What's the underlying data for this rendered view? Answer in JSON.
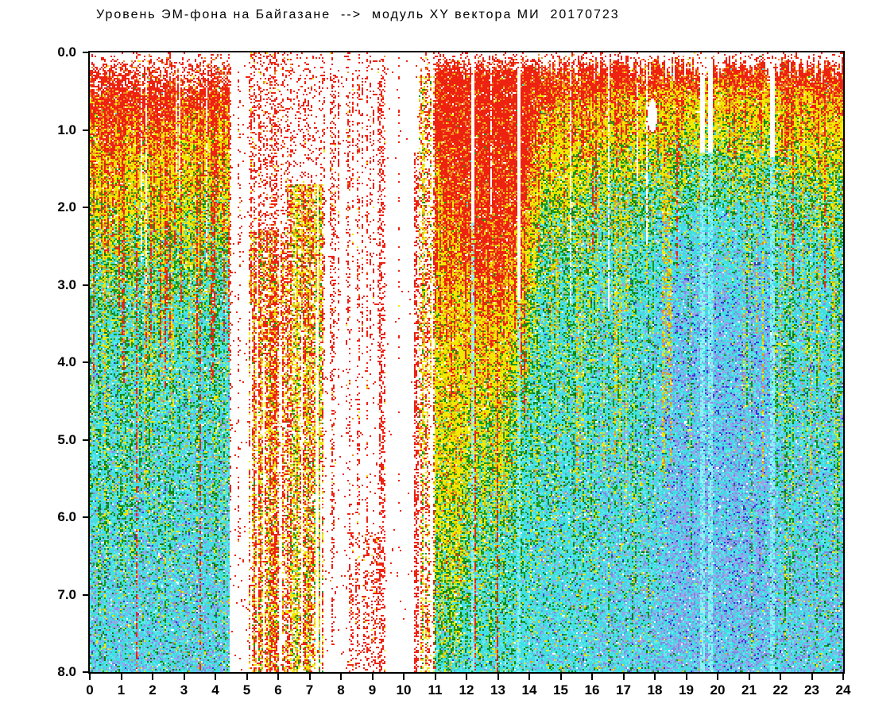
{
  "chart_data": {
    "type": "heatmap",
    "title": "Уровень ЭМ-фона на Байгазане  -->  модуль XY вектора МИ  20170723",
    "station": "Байгазан",
    "date_label": "20170723",
    "x_range": [
      0,
      24
    ],
    "y_range": [
      0,
      8
    ],
    "y_inverted": true,
    "x_ticks": [
      0,
      1,
      2,
      3,
      4,
      5,
      6,
      7,
      8,
      9,
      10,
      11,
      12,
      13,
      14,
      15,
      16,
      17,
      18,
      19,
      20,
      21,
      22,
      23,
      24
    ],
    "y_ticks": [
      "0.0",
      "1.0",
      "2.0",
      "3.0",
      "4.0",
      "5.0",
      "6.0",
      "7.0",
      "8.0"
    ],
    "palette": {
      "red": "#ee2211",
      "orange": "#ef8822",
      "yellow": "#f2e800",
      "gold": "#d2bc00",
      "green": "#1a9c1a",
      "darkgreen": "#0d7a0d",
      "cyan": "#3fdfe4",
      "cyan2": "#66e8ec",
      "cyanLight": "#8ff0f4",
      "lavender": "#9aa2ea",
      "lavender2": "#8088e0",
      "blue": "#3236d8",
      "white": "#ffffff"
    },
    "bands_stops": [
      [
        0.0,
        0.95,
        2.3,
        3.3
      ],
      [
        2.5,
        1.0,
        2.45,
        3.45
      ],
      [
        4.45,
        0.85,
        2.2,
        3.2
      ],
      [
        10.5,
        1.0,
        4.0,
        6.0
      ],
      [
        11.0,
        1.5,
        6.0,
        7.6
      ],
      [
        11.6,
        2.4,
        6.8,
        7.9
      ],
      [
        12.2,
        3.0,
        5.6,
        7.0
      ],
      [
        13.2,
        3.2,
        5.0,
        6.5
      ],
      [
        13.8,
        2.3,
        4.2,
        5.5
      ],
      [
        14.3,
        0.8,
        2.3,
        3.3
      ],
      [
        15.2,
        0.65,
        2.0,
        3.0
      ],
      [
        16.2,
        0.55,
        1.65,
        2.5
      ],
      [
        18.0,
        0.48,
        1.4,
        2.2
      ],
      [
        20.0,
        0.42,
        1.2,
        2.0
      ],
      [
        21.5,
        0.45,
        1.25,
        2.05
      ],
      [
        22.6,
        0.52,
        1.5,
        2.3
      ],
      [
        24.0,
        0.58,
        1.8,
        2.7
      ]
    ],
    "segments": [
      {
        "id": "morning-active",
        "t0": 0.0,
        "t1": 4.45,
        "type": "full",
        "density": 0.985,
        "topJitter": 0.18,
        "topRamp": 0.5,
        "redStreakProb": 0.5,
        "streakDmin": 1.2,
        "streakDmax": 4.8,
        "greenStreakProb": 0.35,
        "yellowStreakProb": 0.22,
        "greenSpeck": 0.16,
        "yellowSpeck": 0.1,
        "lav0": 0.03,
        "lav1": 0.33,
        "blueDot": 0.012,
        "whiteHole": 0.035,
        "whiteColProb": 0.05
      },
      {
        "id": "gap-morning",
        "t0": 4.45,
        "t1": 5.05,
        "type": "gap",
        "colProb": 0.28,
        "colDensity": 0.3,
        "dotProb": 0.015
      },
      {
        "id": "red-streak-band",
        "t0": 5.05,
        "t1": 6.3,
        "type": "streaky",
        "redCol": 0.6,
        "yellowCol": 0.22,
        "topSparse": 2.3,
        "topDensity": 0.42,
        "fill": 0.8
      },
      {
        "id": "yellow-column-band",
        "t0": 6.3,
        "t1": 7.45,
        "type": "streaky",
        "redCol": 0.3,
        "yellowCol": 0.55,
        "topSparse": 1.7,
        "topDensity": 0.3,
        "fill": 0.85
      },
      {
        "id": "gap-forenoon",
        "t0": 7.45,
        "t1": 9.4,
        "type": "gap",
        "colProb": 0.5,
        "colDensity": 0.3,
        "dotProb": 0.02,
        "bottomBoostT": 8.2,
        "bottomBoostD": 6.2
      },
      {
        "id": "gap-midday-blank",
        "t0": 9.4,
        "t1": 10.5,
        "type": "gap",
        "colProb": 0.05,
        "colDensity": 0.18,
        "dotProb": 0.006
      },
      {
        "id": "resume-streaks",
        "t0": 10.5,
        "t1": 11.0,
        "type": "streaky",
        "redCol": 0.65,
        "yellowCol": 0.25,
        "topSparse": 0.3,
        "topDensity": 0.5,
        "fill": 0.6
      },
      {
        "id": "midday-red-core",
        "t0": 11.0,
        "t1": 14.0,
        "type": "full",
        "density": 0.99,
        "topJitter": 0.1,
        "topRamp": 0.25,
        "redStreakProb": 0.4,
        "streakDmin": 2.0,
        "streakDmax": 5.0,
        "greenStreakProb": 0.3,
        "yellowStreakProb": 0.25,
        "greenSpeck": 0.2,
        "yellowSpeck": 0.12,
        "lav0": 0.0,
        "lav1": 0.08,
        "blueDot": 0.006,
        "whiteHole": 0.03,
        "whiteColProb": 0.03
      },
      {
        "id": "afternoon",
        "t0": 14.0,
        "t1": 16.2,
        "type": "full",
        "density": 0.985,
        "topJitter": 0.22,
        "topRamp": 0.18,
        "redStreakProb": 0.3,
        "streakDmin": 1.0,
        "streakDmax": 2.8,
        "greenStreakProb": 0.28,
        "yellowStreakProb": 0.35,
        "greenSpeck": 0.17,
        "yellowSpeck": 0.12,
        "lav0": 0.02,
        "lav1": 0.18,
        "blueDot": 0.01,
        "whiteHole": 0.03,
        "whiteColProb": 0.04
      },
      {
        "id": "evening-a",
        "t0": 16.2,
        "t1": 18.0,
        "type": "full",
        "density": 0.99,
        "topJitter": 0.3,
        "topRamp": 0.12,
        "redStreakProb": 0.3,
        "streakDmin": 0.8,
        "streakDmax": 1.6,
        "greenStreakProb": 0.3,
        "yellowStreakProb": 0.35,
        "greenSpeck": 0.15,
        "yellowSpeck": 0.08,
        "lav0": 0.08,
        "lav1": 0.38,
        "blueDot": 0.014,
        "whiteHole": 0.02,
        "whiteColProb": 0.02
      },
      {
        "id": "evening-b",
        "t0": 18.0,
        "t1": 21.7,
        "type": "full",
        "density": 0.99,
        "topJitter": 0.3,
        "topRamp": 0.12,
        "redStreakProb": 0.28,
        "streakDmin": 0.8,
        "streakDmax": 1.6,
        "greenStreakProb": 0.12,
        "yellowStreakProb": 0.25,
        "greenSpeck": 0.1,
        "yellowSpeck": 0.05,
        "lav0": 0.12,
        "lav1": 0.5,
        "blueDot": 0.018,
        "whiteHole": 0.02,
        "whiteColProb": 0.02
      },
      {
        "id": "evening-c",
        "t0": 21.7,
        "t1": 24.01,
        "type": "full",
        "density": 0.99,
        "topJitter": 0.3,
        "topRamp": 0.12,
        "redStreakProb": 0.3,
        "streakDmin": 0.8,
        "streakDmax": 1.7,
        "greenStreakProb": 0.24,
        "yellowStreakProb": 0.3,
        "greenSpeck": 0.14,
        "yellowSpeck": 0.08,
        "lav0": 0.1,
        "lav1": 0.42,
        "blueDot": 0.014,
        "whiteHole": 0.02,
        "whiteColProb": 0.02
      }
    ],
    "features": [
      {
        "type": "white-notch",
        "t": 17.92,
        "w": 0.3,
        "d0": 0.6,
        "d1": 1.03
      },
      {
        "type": "white-line",
        "t": 12.2,
        "w": 0.07,
        "dSolid": 2.2
      },
      {
        "type": "white-line",
        "t": 13.66,
        "w": 0.09,
        "dSolid": 3.2
      },
      {
        "type": "white-line",
        "t": 19.5,
        "w": 0.14,
        "dSolid": 1.3
      },
      {
        "type": "white-line",
        "t": 19.78,
        "w": 0.12,
        "dSolid": 1.3
      },
      {
        "type": "white-line",
        "t": 21.76,
        "w": 0.16,
        "dSolid": 1.35
      },
      {
        "type": "red-line",
        "t": 9.3,
        "w": 0.12,
        "d0": 0.4,
        "d1": 8,
        "density": 0.5
      },
      {
        "type": "red-line",
        "t": 10.42,
        "w": 0.14,
        "d0": 1.3,
        "d1": 8,
        "density": 0.5
      },
      {
        "type": "lavender-patch",
        "t0": 18.4,
        "t1": 21.7,
        "d0": 2.9,
        "d1": 7.7,
        "strength": 0.3
      }
    ],
    "render": {
      "seed": 20170723,
      "cols": 474,
      "rows": 390
    }
  }
}
